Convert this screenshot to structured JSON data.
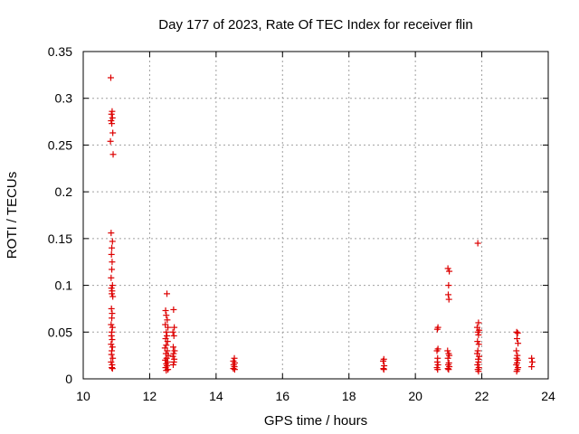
{
  "chart_data": {
    "type": "scatter",
    "title": "Day 177 of 2023, Rate Of TEC Index for receiver flin",
    "xlabel": "GPS time / hours",
    "ylabel": "ROTI / TECUs",
    "xlim": [
      10,
      24
    ],
    "ylim": [
      0,
      0.35
    ],
    "x_ticks": [
      10,
      12,
      14,
      16,
      18,
      20,
      22,
      24
    ],
    "y_ticks": [
      0,
      0.05,
      0.1,
      0.15,
      0.2,
      0.25,
      0.3,
      0.35
    ],
    "x_tick_labels": [
      "10",
      "12",
      "14",
      "16",
      "18",
      "20",
      "22",
      "24"
    ],
    "y_tick_labels": [
      "0",
      "0.05",
      "0.1",
      "0.15",
      "0.2",
      "0.25",
      "0.3",
      "0.35"
    ],
    "grid": true,
    "marker": "+",
    "color": "#dd0000",
    "series": [
      {
        "name": "ROTI",
        "points": [
          [
            10.83,
            0.322
          ],
          [
            10.87,
            0.286
          ],
          [
            10.85,
            0.283
          ],
          [
            10.88,
            0.279
          ],
          [
            10.84,
            0.276
          ],
          [
            10.86,
            0.273
          ],
          [
            10.89,
            0.263
          ],
          [
            10.82,
            0.254
          ],
          [
            10.9,
            0.24
          ],
          [
            10.84,
            0.156
          ],
          [
            10.88,
            0.147
          ],
          [
            10.86,
            0.14
          ],
          [
            10.85,
            0.133
          ],
          [
            10.87,
            0.125
          ],
          [
            10.86,
            0.117
          ],
          [
            10.84,
            0.108
          ],
          [
            10.88,
            0.1
          ],
          [
            10.85,
            0.097
          ],
          [
            10.87,
            0.094
          ],
          [
            10.86,
            0.091
          ],
          [
            10.89,
            0.088
          ],
          [
            10.85,
            0.075
          ],
          [
            10.87,
            0.07
          ],
          [
            10.86,
            0.065
          ],
          [
            10.84,
            0.058
          ],
          [
            10.88,
            0.055
          ],
          [
            10.86,
            0.05
          ],
          [
            10.85,
            0.046
          ],
          [
            10.87,
            0.042
          ],
          [
            10.84,
            0.037
          ],
          [
            10.88,
            0.034
          ],
          [
            10.86,
            0.03
          ],
          [
            10.85,
            0.026
          ],
          [
            10.89,
            0.022
          ],
          [
            10.84,
            0.018
          ],
          [
            10.87,
            0.015
          ],
          [
            10.86,
            0.012
          ],
          [
            10.88,
            0.011
          ],
          [
            12.52,
            0.091
          ],
          [
            12.48,
            0.073
          ],
          [
            12.5,
            0.068
          ],
          [
            12.53,
            0.063
          ],
          [
            12.47,
            0.058
          ],
          [
            12.55,
            0.055
          ],
          [
            12.5,
            0.05
          ],
          [
            12.52,
            0.046
          ],
          [
            12.48,
            0.043
          ],
          [
            12.54,
            0.04
          ],
          [
            12.5,
            0.036
          ],
          [
            12.46,
            0.033
          ],
          [
            12.53,
            0.03
          ],
          [
            12.49,
            0.027
          ],
          [
            12.56,
            0.025
          ],
          [
            12.51,
            0.022
          ],
          [
            12.47,
            0.02
          ],
          [
            12.54,
            0.018
          ],
          [
            12.5,
            0.016
          ],
          [
            12.52,
            0.014
          ],
          [
            12.48,
            0.012
          ],
          [
            12.55,
            0.01
          ],
          [
            12.5,
            0.009
          ],
          [
            12.72,
            0.074
          ],
          [
            12.74,
            0.055
          ],
          [
            12.7,
            0.05
          ],
          [
            12.73,
            0.046
          ],
          [
            12.71,
            0.034
          ],
          [
            12.75,
            0.03
          ],
          [
            12.72,
            0.027
          ],
          [
            12.7,
            0.024
          ],
          [
            12.74,
            0.021
          ],
          [
            12.73,
            0.018
          ],
          [
            12.71,
            0.015
          ],
          [
            14.55,
            0.022
          ],
          [
            14.52,
            0.019
          ],
          [
            14.56,
            0.017
          ],
          [
            14.53,
            0.015
          ],
          [
            14.55,
            0.013
          ],
          [
            14.52,
            0.011
          ],
          [
            14.56,
            0.01
          ],
          [
            19.05,
            0.021
          ],
          [
            19.03,
            0.019
          ],
          [
            19.06,
            0.014
          ],
          [
            19.04,
            0.011
          ],
          [
            19.05,
            0.01
          ],
          [
            20.68,
            0.055
          ],
          [
            20.66,
            0.053
          ],
          [
            20.68,
            0.032
          ],
          [
            20.65,
            0.03
          ],
          [
            20.67,
            0.022
          ],
          [
            20.66,
            0.018
          ],
          [
            20.68,
            0.015
          ],
          [
            20.65,
            0.012
          ],
          [
            20.67,
            0.01
          ],
          [
            20.98,
            0.118
          ],
          [
            21.02,
            0.115
          ],
          [
            21.0,
            0.1
          ],
          [
            20.99,
            0.09
          ],
          [
            21.01,
            0.085
          ],
          [
            20.97,
            0.03
          ],
          [
            21.0,
            0.027
          ],
          [
            21.02,
            0.025
          ],
          [
            20.98,
            0.022
          ],
          [
            21.01,
            0.017
          ],
          [
            20.99,
            0.015
          ],
          [
            21.02,
            0.013
          ],
          [
            20.98,
            0.011
          ],
          [
            21.0,
            0.01
          ],
          [
            21.88,
            0.145
          ],
          [
            21.9,
            0.06
          ],
          [
            21.86,
            0.055
          ],
          [
            21.92,
            0.052
          ],
          [
            21.88,
            0.05
          ],
          [
            21.9,
            0.047
          ],
          [
            21.87,
            0.04
          ],
          [
            21.91,
            0.037
          ],
          [
            21.88,
            0.03
          ],
          [
            21.86,
            0.027
          ],
          [
            21.92,
            0.024
          ],
          [
            21.89,
            0.021
          ],
          [
            21.9,
            0.018
          ],
          [
            21.87,
            0.015
          ],
          [
            21.91,
            0.012
          ],
          [
            21.88,
            0.01
          ],
          [
            21.9,
            0.008
          ],
          [
            23.05,
            0.05
          ],
          [
            23.08,
            0.049
          ],
          [
            23.06,
            0.043
          ],
          [
            23.09,
            0.038
          ],
          [
            23.04,
            0.03
          ],
          [
            23.07,
            0.025
          ],
          [
            23.05,
            0.022
          ],
          [
            23.08,
            0.02
          ],
          [
            23.06,
            0.017
          ],
          [
            23.04,
            0.015
          ],
          [
            23.09,
            0.012
          ],
          [
            23.07,
            0.01
          ],
          [
            23.05,
            0.008
          ],
          [
            23.5,
            0.022
          ],
          [
            23.52,
            0.018
          ],
          [
            23.5,
            0.013
          ]
        ]
      }
    ]
  }
}
